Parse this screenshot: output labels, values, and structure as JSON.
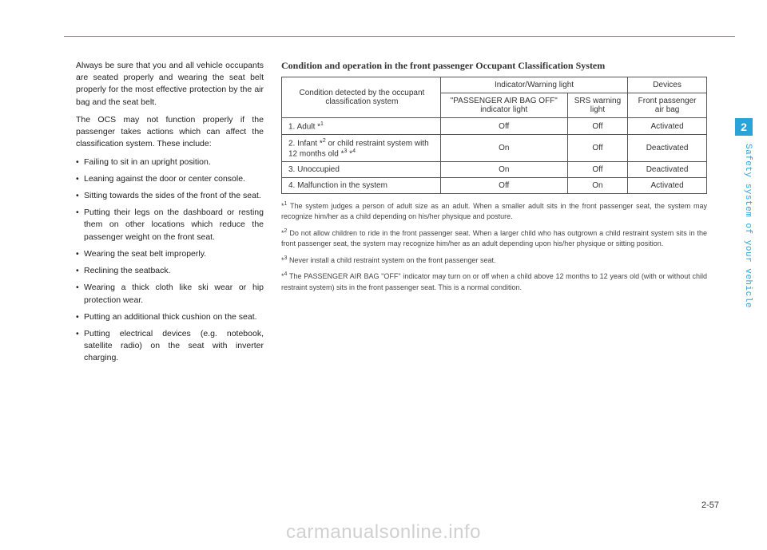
{
  "chapter_number": "2",
  "side_label": "Safety system of your vehicle",
  "page_number": "2-57",
  "watermark": "carmanualsonline.info",
  "left_column": {
    "para1": "Always be sure that you and all vehicle occupants are seated properly and wearing the seat belt properly for the most effective protection by the air bag and the seat belt.",
    "para2": "The OCS may not function properly if the passenger takes actions which can affect the classification system. These include:",
    "bullets": [
      "Failing to sit in an upright position.",
      "Leaning against the door or center console.",
      "Sitting towards the sides of the front of the seat.",
      "Putting their legs on the dashboard or resting them on other locations which reduce the passenger weight on the front seat.",
      "Wearing the seat belt improperly.",
      "Reclining the seatback.",
      "Wearing a thick cloth like ski wear or hip protection wear.",
      "Putting an additional thick cushion on the seat.",
      "Putting electrical devices (e.g. notebook, satellite radio) on the seat with inverter charging."
    ]
  },
  "right_column": {
    "title": "Condition and operation in the front passenger Occupant Classification System",
    "table": {
      "header_condition": "Condition detected by the occupant classification system",
      "header_indicator": "Indicator/Warning light",
      "header_devices": "Devices",
      "header_passenger_off": "\"PASSENGER AIR BAG OFF\" indicator light",
      "header_srs": "SRS warning light",
      "header_front_airbag": "Front passenger air bag",
      "rows": [
        {
          "label_pre": "1. Adult *",
          "label_sup": "1",
          "label_post": "",
          "c1": "Off",
          "c2": "Off",
          "c3": "Activated"
        },
        {
          "label_pre": "2. Infant *",
          "label_sup": "2",
          "label_post": " or child restraint system with 12 months old *",
          "label_sup2": "3",
          "label_post2": " *",
          "label_sup3": "4",
          "c1": "On",
          "c2": "Off",
          "c3": "Deactivated"
        },
        {
          "label_pre": "3. Unoccupied",
          "label_sup": "",
          "label_post": "",
          "c1": "On",
          "c2": "Off",
          "c3": "Deactivated"
        },
        {
          "label_pre": "4. Malfunction in the system",
          "label_sup": "",
          "label_post": "",
          "c1": "Off",
          "c2": "On",
          "c3": "Activated"
        }
      ]
    },
    "footnotes": [
      {
        "num": "1",
        "text": "The system judges a person of adult size as an adult. When a smaller adult sits in the front passenger seat, the system may recognize him/her as a child depending on his/her physique and posture."
      },
      {
        "num": "2",
        "text": "Do not allow children to ride in the front passenger seat. When a larger child who has outgrown a child restraint system sits in the front passenger seat, the system may recognize him/her as an adult depending upon his/her physique or sitting position."
      },
      {
        "num": "3",
        "text": "Never install a child restraint system on the front passenger seat."
      },
      {
        "num": "4",
        "text": "The PASSENGER AIR BAG \"OFF\" indicator may turn on or off when a child above 12 months to 12 years old (with or without child restraint system) sits in the front passenger seat. This is a normal condition."
      }
    ]
  },
  "colors": {
    "accent": "#2aa3d8",
    "text": "#222222",
    "border": "#555555",
    "watermark": "rgba(120,120,120,0.35)"
  }
}
